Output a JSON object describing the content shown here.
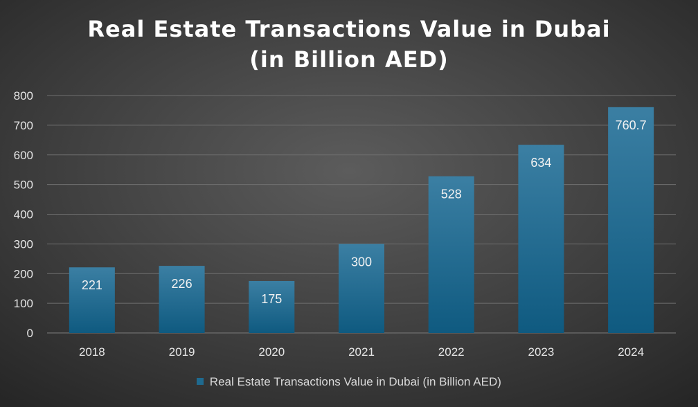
{
  "chart_data": {
    "type": "bar",
    "title_lines": [
      "Real Estate Transactions Value in Dubai",
      "(in Billion AED)"
    ],
    "categories": [
      "2018",
      "2019",
      "2020",
      "2021",
      "2022",
      "2023",
      "2024"
    ],
    "series": [
      {
        "name": "Real Estate Transactions Value in Dubai (in Billion AED)",
        "values": [
          221,
          226,
          175,
          300,
          528,
          634,
          760.7
        ],
        "labels": [
          "221",
          "226",
          "175",
          "300",
          "528",
          "634",
          "760.7"
        ],
        "color": "#1f6a8f"
      }
    ],
    "ylim": [
      0,
      800
    ],
    "yticks": [
      "0",
      "100",
      "200",
      "300",
      "400",
      "500",
      "600",
      "700",
      "800"
    ],
    "grid": true,
    "legend_position": "bottom"
  },
  "colors": {
    "bar_top": "#3b7fa3",
    "bar_bottom": "#0f5a80",
    "gridline": "#6f6f6f",
    "axis_text": "#e6e6e6",
    "data_label": "#f2f2f2"
  }
}
